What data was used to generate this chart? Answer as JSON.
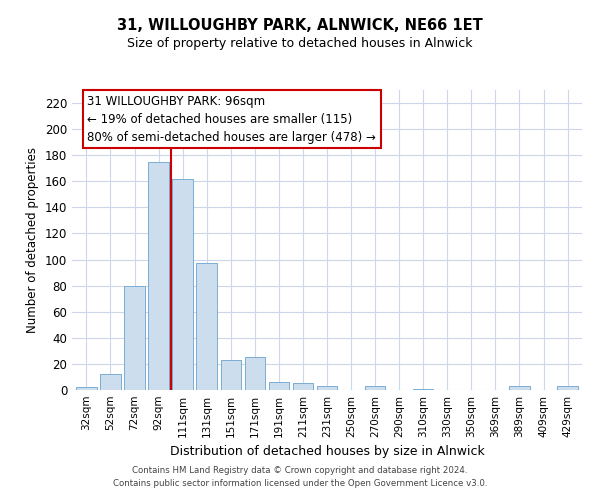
{
  "title": "31, WILLOUGHBY PARK, ALNWICK, NE66 1ET",
  "subtitle": "Size of property relative to detached houses in Alnwick",
  "xlabel": "Distribution of detached houses by size in Alnwick",
  "ylabel": "Number of detached properties",
  "bar_labels": [
    "32sqm",
    "52sqm",
    "72sqm",
    "92sqm",
    "111sqm",
    "131sqm",
    "151sqm",
    "171sqm",
    "191sqm",
    "211sqm",
    "231sqm",
    "250sqm",
    "270sqm",
    "290sqm",
    "310sqm",
    "330sqm",
    "350sqm",
    "369sqm",
    "389sqm",
    "409sqm",
    "429sqm"
  ],
  "bar_values": [
    2,
    12,
    80,
    175,
    162,
    97,
    23,
    25,
    6,
    5,
    3,
    0,
    3,
    0,
    1,
    0,
    0,
    0,
    3,
    0,
    3
  ],
  "bar_color": "#ccdded",
  "bar_edge_color": "#7aaed4",
  "vline_color": "#cc0000",
  "ylim": [
    0,
    230
  ],
  "yticks": [
    0,
    20,
    40,
    60,
    80,
    100,
    120,
    140,
    160,
    180,
    200,
    220
  ],
  "annotation_line1": "31 WILLOUGHBY PARK: 96sqm",
  "annotation_line2": "← 19% of detached houses are smaller (115)",
  "annotation_line3": "80% of semi-detached houses are larger (478) →",
  "annotation_box_edge": "#cc0000",
  "footer_line1": "Contains HM Land Registry data © Crown copyright and database right 2024.",
  "footer_line2": "Contains public sector information licensed under the Open Government Licence v3.0.",
  "bg_color": "#ffffff",
  "grid_color": "#ccd8ea"
}
